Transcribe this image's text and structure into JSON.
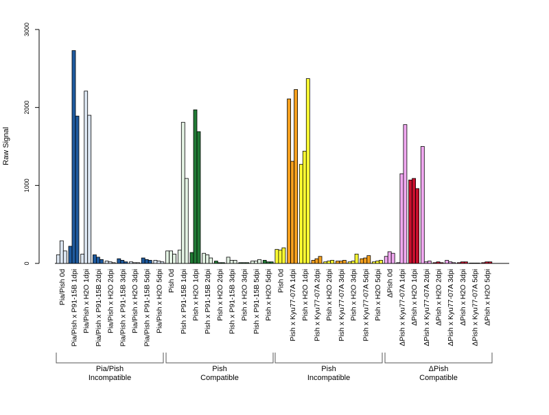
{
  "chart_data": {
    "type": "bar",
    "ylabel": "Raw Signal",
    "ylim": [
      0,
      3000
    ],
    "yticks": [
      0,
      1000,
      2000,
      3000
    ],
    "bar_outline": "#000000",
    "categories": [
      "Pia/Pish 0d",
      "Pia/Pish x P91-15B 1dpi",
      "Pia/Pish x H2O 1dpi",
      "Pia/Pish x P91-15B 2dpi",
      "Pia/Pish x H2O 2dpi",
      "Pia/Pish x P91-15B 3dpi",
      "Pia/Pish x H2O 3dpi",
      "Pia/Pish x P91-15B 5dpi",
      "Pia/Pish x H2O 5dpi",
      "Pish 0d",
      "Pish x P91-15B 1dpi",
      "Pish x H2O 1dpi",
      "Pish x P91-15B 2dpi",
      "Pish x H2O 2dpi",
      "Pish x P91-15B 3dpi",
      "Pish x H2O 3dpi",
      "Pish x P91-15B 5dpi",
      "Pish x H2O 5dpi",
      "Pish 0d",
      "Pish x Kyu77-07A 1dpi",
      "Pish x H2O 1dpi",
      "Pish x Kyu77-07A 2dpi",
      "Pish x H2O 2dpi",
      "Pish x Kyu77-07A 3dpi",
      "Pish x H2O 3dpi",
      "Pish x Kyu77-07A 5dpi",
      "Pish x H2O 5dpi",
      "ΔPish 0d",
      "ΔPish x Kyu77-07A 1dpi",
      "ΔPish x H2O 1dpi",
      "ΔPish x Kyu77-07A 2dpi",
      "ΔPish x H2O 2dpi",
      "ΔPish x Kyu77-07A 3dpi",
      "ΔPish x H2O 3dpi",
      "ΔPish x Kyu77-07A 5dpi",
      "ΔPish x H2O 5dpi"
    ],
    "groups": [
      {
        "line1": "Pia/Pish",
        "line2": "Incompatible",
        "light": "#dce6f2",
        "dark": "#1f5a9e"
      },
      {
        "line1": "Pish",
        "line2": "Compatible",
        "light": "#e3f2e3",
        "dark": "#217a35"
      },
      {
        "line1": "Pish",
        "line2": "Incompatible",
        "light": "#ffff33",
        "dark": "#f5a01e"
      },
      {
        "line1": "ΔPish",
        "line2": "Compatible",
        "light": "#f0a8f0",
        "dark": "#c8102e"
      }
    ],
    "values": [
      [
        110,
        290,
        160
      ],
      [
        220,
        2730,
        1890
      ],
      [
        120,
        2210,
        1900
      ],
      [
        110,
        80,
        50
      ],
      [
        30,
        20,
        10
      ],
      [
        60,
        40,
        20
      ],
      [
        20,
        10,
        10
      ],
      [
        70,
        50,
        40
      ],
      [
        40,
        30,
        20
      ],
      [
        160,
        160,
        120
      ],
      [
        170,
        1810,
        1090
      ],
      [
        140,
        1970,
        1690
      ],
      [
        130,
        110,
        70
      ],
      [
        30,
        10,
        10
      ],
      [
        80,
        40,
        40
      ],
      [
        10,
        10,
        10
      ],
      [
        30,
        30,
        50
      ],
      [
        40,
        20,
        20
      ],
      [
        180,
        170,
        200
      ],
      [
        2110,
        1310,
        2230
      ],
      [
        1270,
        1440,
        2370
      ],
      [
        40,
        60,
        90
      ],
      [
        20,
        30,
        40
      ],
      [
        30,
        30,
        40
      ],
      [
        20,
        30,
        120
      ],
      [
        60,
        70,
        100
      ],
      [
        20,
        30,
        40
      ],
      [
        90,
        150,
        130
      ],
      [
        10,
        1150,
        1780
      ],
      [
        1070,
        1090,
        960
      ],
      [
        1500,
        20,
        30
      ],
      [
        10,
        20,
        10
      ],
      [
        40,
        20,
        10
      ],
      [
        10,
        20,
        20
      ],
      [
        5,
        5,
        5
      ],
      [
        10,
        20,
        20
      ]
    ]
  }
}
